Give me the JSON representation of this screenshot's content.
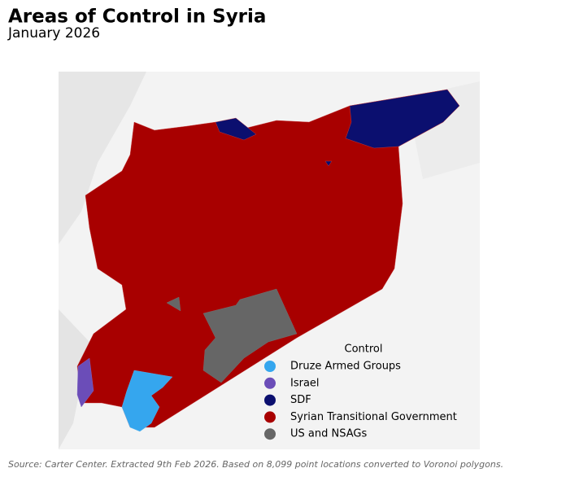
{
  "title": "Areas of Control in Syria",
  "subtitle": "January 2026",
  "legend": {
    "title": "Control",
    "items": [
      {
        "label": "Druze Armed Groups",
        "color": "#35a6ee"
      },
      {
        "label": "Israel",
        "color": "#6b4db8"
      },
      {
        "label": "SDF",
        "color": "#0b0f6f"
      },
      {
        "label": "Syrian Transitional Government",
        "color": "#a80000"
      },
      {
        "label": "US and NSAGs",
        "color": "#666666"
      }
    ]
  },
  "source": "Source: Carter Center. Extracted 9th Feb 2026. Based on 8,099 point locations converted to Voronoi polygons."
}
